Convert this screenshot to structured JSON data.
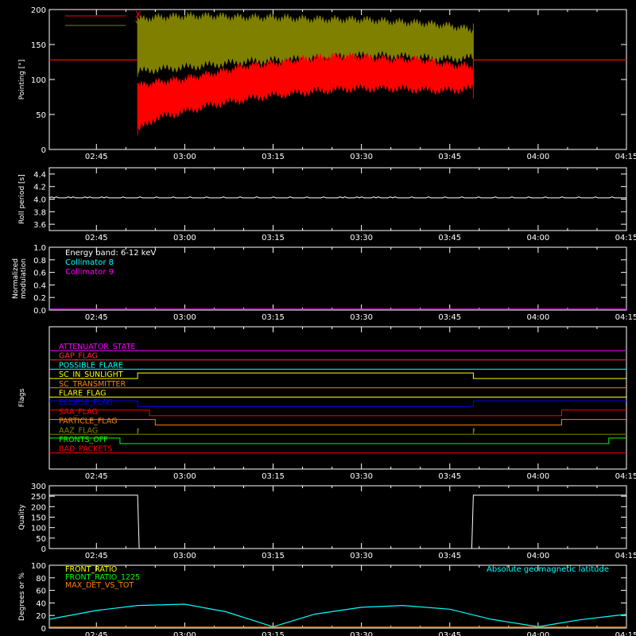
{
  "chart_data": [
    {
      "type": "area",
      "ylabel": "Pointing [°]",
      "ylim": [
        0,
        200
      ],
      "yticks": [
        "0",
        "50",
        "100",
        "150",
        "200"
      ],
      "x_ticks": [
        "02:45",
        "03:00",
        "03:15",
        "03:30",
        "03:45",
        "04:00",
        "04:15"
      ],
      "legend_placement": "top-left",
      "series": [
        {
          "name": "X",
          "color": "#ff0000",
          "baseline": 128,
          "active_start": "02:52",
          "active_end": "03:49",
          "envelope_time": [
            "02:52",
            "02:55",
            "03:00",
            "03:05",
            "03:10",
            "03:15",
            "03:20",
            "03:25",
            "03:30",
            "03:35",
            "03:40",
            "03:45",
            "03:49"
          ],
          "upper": [
            90,
            95,
            100,
            108,
            118,
            122,
            128,
            132,
            132,
            128,
            128,
            120,
            118
          ],
          "lower": [
            28,
            45,
            55,
            65,
            72,
            78,
            82,
            86,
            88,
            88,
            86,
            85,
            88
          ]
        },
        {
          "name": "Y",
          "color": "#808000",
          "baseline": 128,
          "active_start": "02:52",
          "active_end": "03:49",
          "envelope_time": [
            "02:52",
            "02:55",
            "03:00",
            "03:05",
            "03:10",
            "03:15",
            "03:20",
            "03:25",
            "03:30",
            "03:35",
            "03:40",
            "03:45",
            "03:49"
          ],
          "upper": [
            185,
            188,
            190,
            190,
            188,
            188,
            186,
            185,
            185,
            182,
            180,
            176,
            170
          ],
          "lower": [
            112,
            115,
            118,
            122,
            126,
            128,
            130,
            132,
            135,
            135,
            132,
            130,
            132
          ]
        }
      ]
    },
    {
      "type": "line",
      "ylabel": "Roll period [s]",
      "ylim": [
        3.5,
        4.5
      ],
      "yticks": [
        "3.6",
        "3.8",
        "4.0",
        "4.2",
        "4.4"
      ],
      "x_ticks": [
        "02:45",
        "03:00",
        "03:15",
        "03:30",
        "03:45",
        "04:00",
        "04:15"
      ],
      "series": [
        {
          "name": "",
          "color": "#ffffff",
          "value": 4.02
        }
      ]
    },
    {
      "type": "line",
      "ylabel": "Normalized modulation",
      "ylim": [
        0,
        1
      ],
      "yticks": [
        "0.0",
        "0.2",
        "0.4",
        "0.6",
        "0.8",
        "1.0"
      ],
      "x_ticks": [
        "02:45",
        "03:00",
        "03:15",
        "03:30",
        "03:45",
        "04:00",
        "04:15"
      ],
      "annotation": "Energy band: 6-12 keV",
      "legend_placement": "top-left",
      "series": [
        {
          "name": "Collimator 8",
          "color": "#00ffff"
        },
        {
          "name": "Collimator 9",
          "color": "#ff00ff",
          "value": 0
        }
      ]
    },
    {
      "type": "line",
      "ylabel": "Flags",
      "x_ticks": [
        "02:45",
        "03:00",
        "03:15",
        "03:30",
        "03:45",
        "04:00",
        "04:15"
      ],
      "flags": [
        {
          "name": "ATTENUATOR_STATE",
          "color": "#ff00ff",
          "segments": [
            {
              "from": "02:37",
              "to": "04:15",
              "on": false
            }
          ]
        },
        {
          "name": "GAP_FLAG",
          "color": "#ff3333",
          "segments": [
            {
              "from": "02:37",
              "to": "04:15",
              "on": false
            }
          ]
        },
        {
          "name": "POSSIBLE_FLARE",
          "color": "#00ffff",
          "segments": [
            {
              "from": "02:37",
              "to": "04:15",
              "on": false
            }
          ]
        },
        {
          "name": "SC_IN_SUNLIGHT",
          "color": "#ffff00",
          "segments": [
            {
              "from": "02:37",
              "to": "02:52",
              "on": false
            },
            {
              "from": "02:52",
              "to": "03:49",
              "on": true
            },
            {
              "from": "03:49",
              "to": "04:15",
              "on": false
            }
          ]
        },
        {
          "name": "SC_TRANSMITTER",
          "color": "#ff8000",
          "segments": [
            {
              "from": "02:37",
              "to": "04:15",
              "on": false
            }
          ]
        },
        {
          "name": "FLARE_FLAG",
          "color": "#ffff00",
          "segments": [
            {
              "from": "02:37",
              "to": "04:15",
              "on": false
            }
          ]
        },
        {
          "name": "ECLIPSE_FLAG",
          "color": "#0000ff",
          "segments": [
            {
              "from": "02:37",
              "to": "02:52",
              "on": true
            },
            {
              "from": "02:52",
              "to": "03:49",
              "on": false
            },
            {
              "from": "03:49",
              "to": "04:15",
              "on": true
            }
          ]
        },
        {
          "name": "SAA_FLAG",
          "color": "#ff0000",
          "segments": [
            {
              "from": "02:37",
              "to": "02:54",
              "on": true
            },
            {
              "from": "02:54",
              "to": "04:04",
              "on": false
            },
            {
              "from": "04:04",
              "to": "04:15",
              "on": true
            }
          ]
        },
        {
          "name": "PARTICLE_FLAG",
          "color": "#ff8000",
          "segments": [
            {
              "from": "02:37",
              "to": "02:55",
              "on": true
            },
            {
              "from": "02:55",
              "to": "04:04",
              "on": false
            },
            {
              "from": "04:04",
              "to": "04:15",
              "on": true
            }
          ]
        },
        {
          "name": "AAZ_FLAG",
          "color": "#808000",
          "segments": [
            {
              "from": "02:37",
              "to": "02:52",
              "on": false
            },
            {
              "from": "02:52",
              "to": "02:52",
              "on": true
            },
            {
              "from": "02:52",
              "to": "03:49",
              "on": false
            },
            {
              "from": "03:49",
              "to": "03:49",
              "on": true
            },
            {
              "from": "03:49",
              "to": "04:15",
              "on": false
            }
          ]
        },
        {
          "name": "FRONTS_OFF",
          "color": "#00ff00",
          "segments": [
            {
              "from": "02:37",
              "to": "02:49",
              "on": true
            },
            {
              "from": "02:49",
              "to": "04:12",
              "on": false
            },
            {
              "from": "04:12",
              "to": "04:15",
              "on": true
            }
          ]
        },
        {
          "name": "BAD_PACKETS",
          "color": "#ff0000",
          "segments": [
            {
              "from": "02:37",
              "to": "04:15",
              "on": false
            }
          ]
        }
      ]
    },
    {
      "type": "line",
      "ylabel": "Quality",
      "ylim": [
        0,
        300
      ],
      "yticks": [
        "0",
        "50",
        "100",
        "150",
        "200",
        "250",
        "300"
      ],
      "x_ticks": [
        "02:45",
        "03:00",
        "03:15",
        "03:30",
        "03:45",
        "04:00",
        "04:15"
      ],
      "series": [
        {
          "name": "",
          "color": "#ffffff",
          "x": [
            "02:37",
            "02:52",
            "02:52",
            "03:49",
            "03:49",
            "04:15"
          ],
          "y": [
            255,
            255,
            0,
            0,
            255,
            255
          ]
        }
      ]
    },
    {
      "type": "line",
      "ylabel": "Degrees or %",
      "ylim": [
        0,
        100
      ],
      "yticks": [
        "0",
        "20",
        "40",
        "60",
        "80",
        "100"
      ],
      "x_ticks": [
        "02:45",
        "03:00",
        "03:15",
        "03:30",
        "03:45",
        "04:00",
        "04:15"
      ],
      "legend_placement": "top-left",
      "series": [
        {
          "name": "FRONT_RATIO",
          "color": "#ffff00"
        },
        {
          "name": "FRONT_RATIO_1225",
          "color": "#00ff00"
        },
        {
          "name": "MAX_DET_VS_TOT",
          "color": "#ff8000",
          "value": 0
        },
        {
          "name": "Absolute geomagnetic latitude",
          "color": "#00ffff",
          "legend_placement": "top-right",
          "x": [
            "02:37",
            "02:45",
            "02:52",
            "03:00",
            "03:07",
            "03:15",
            "03:22",
            "03:30",
            "03:37",
            "03:45",
            "03:52",
            "04:00",
            "04:07",
            "04:15"
          ],
          "y": [
            14,
            28,
            36,
            38,
            26,
            2,
            22,
            33,
            36,
            30,
            14,
            2,
            13,
            22
          ]
        }
      ]
    }
  ]
}
